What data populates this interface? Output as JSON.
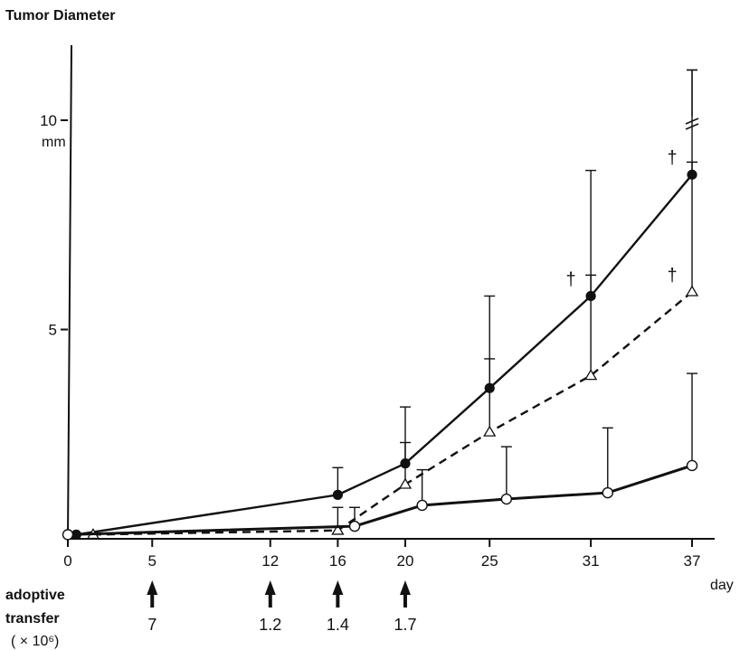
{
  "chart_data": {
    "type": "line",
    "title": "",
    "ylabel": "Tumor Diameter",
    "y_unit": "mm",
    "xlabel": "day",
    "xlim": [
      0,
      37
    ],
    "ylim": [
      0,
      10
    ],
    "y_ticks": [
      5,
      10
    ],
    "x_ticks": [
      0,
      5,
      12,
      16,
      20,
      25,
      31,
      37
    ],
    "grid": false,
    "series": [
      {
        "marker": "filled-circle",
        "line": "solid",
        "x": [
          0.5,
          16,
          20,
          25,
          31,
          37
        ],
        "y": [
          0.1,
          1.05,
          1.8,
          3.6,
          5.8,
          8.7
        ],
        "error_plus": [
          0,
          0.65,
          1.35,
          2.2,
          3.0,
          2.5
        ],
        "death_marks_at_x": [
          31,
          37
        ]
      },
      {
        "marker": "open-triangle",
        "line": "dashed",
        "x": [
          1.5,
          16,
          20,
          25,
          31,
          37
        ],
        "y": [
          0.1,
          0.2,
          1.3,
          2.55,
          3.9,
          5.9
        ],
        "error_plus": [
          0,
          0.55,
          1.0,
          1.75,
          2.4,
          3.1
        ],
        "death_marks_at_x": [
          37
        ]
      },
      {
        "marker": "open-circle",
        "line": "solid",
        "x": [
          0,
          17,
          21,
          26,
          32,
          37
        ],
        "y": [
          0.1,
          0.3,
          0.8,
          0.95,
          1.1,
          1.75
        ],
        "error_plus": [
          0,
          0.45,
          0.85,
          1.25,
          1.55,
          2.2
        ],
        "death_marks_at_x": []
      }
    ],
    "axis_break_at_y": 10,
    "y_max_error_tick": 11.2,
    "death_symbol": "†",
    "annotation": {
      "label_lines": [
        "adoptive",
        "transfer",
        "( × 10⁶)"
      ],
      "arrows": [
        {
          "day": 5,
          "value": "7"
        },
        {
          "day": 12,
          "value": "1.2"
        },
        {
          "day": 16,
          "value": "1.4"
        },
        {
          "day": 20,
          "value": "1.7"
        }
      ]
    }
  }
}
